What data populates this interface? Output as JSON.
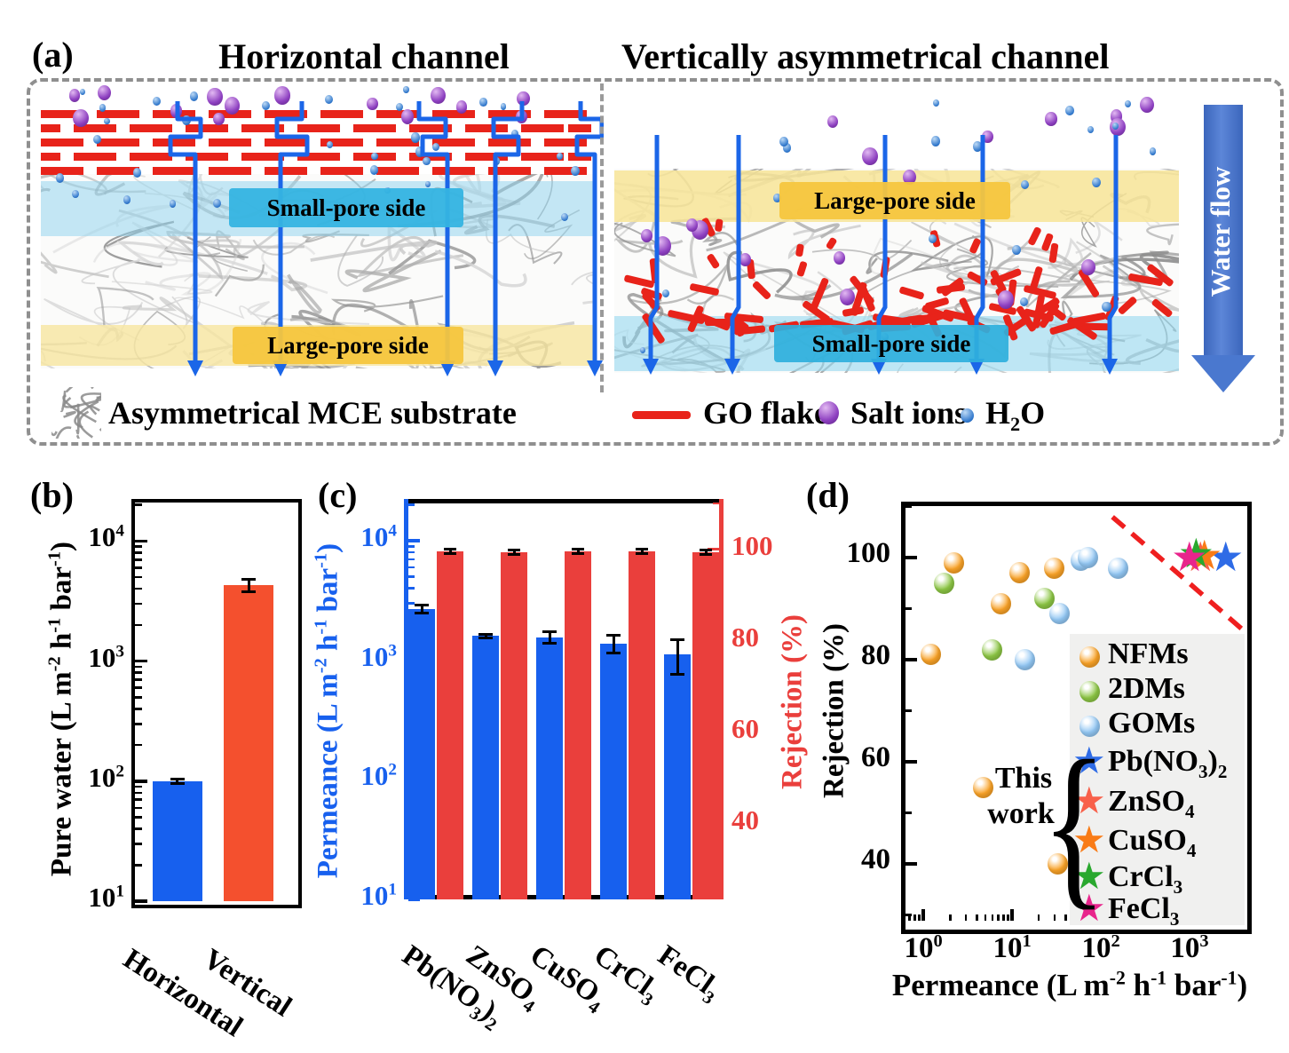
{
  "panel_a": {
    "label": "(a)",
    "left_title": "Horizontal channel",
    "right_title": "Vertically asymmetrical channel",
    "left": {
      "top_label": "Small-pore side",
      "bottom_label": "Large-pore side"
    },
    "right": {
      "top_label": "Large-pore side",
      "bottom_label": "Small-pore side"
    },
    "water_flow_label": "Water flow",
    "legend": {
      "substrate": "Asymmetrical MCE substrate",
      "go_flake": "GO flake",
      "salt_ions": "Salt ions",
      "water": "H_2_O"
    },
    "colors": {
      "go_flake": "#e8231a",
      "water_path": "#1b66e8",
      "salt_ion": "#8d3fc0",
      "water_dot": "#2f77cc",
      "small_pore_box": "#35b4e2",
      "large_pore_box": "#f6c63e",
      "water_flow_arrow": "#4a78cf"
    }
  },
  "chart_data": [
    {
      "id": "panel_b",
      "type": "bar",
      "panel_label": "(b)",
      "ylabel": "Pure water (L m^-2^ h^-1^ bar^-1^)",
      "yscale": "log",
      "ylim": [
        10,
        22400
      ],
      "yticks": [
        {
          "v": 10,
          "label": "10^1^"
        },
        {
          "v": 100,
          "label": "10^2^"
        },
        {
          "v": 1000,
          "label": "10^3^"
        },
        {
          "v": 10000,
          "label": "10^4^"
        }
      ],
      "categories": [
        "Horizontal",
        "Vertical"
      ],
      "values": [
        100,
        4300
      ],
      "errors": [
        4,
        500
      ],
      "bar_colors": [
        "#1760ee",
        "#f4502e"
      ]
    },
    {
      "id": "panel_c",
      "type": "bar-dual",
      "panel_label": "(c)",
      "ylabel_left": "Permeance (L m^-2^ h^-1^ bar^-1^)",
      "ylabel_right": "Rejection (%)",
      "yscale_left": "log",
      "ylim_left": [
        10,
        22400
      ],
      "ylim_right": [
        23.4,
        111
      ],
      "yticks_left": [
        {
          "v": 10,
          "label": "10^1^"
        },
        {
          "v": 100,
          "label": "10^2^"
        },
        {
          "v": 1000,
          "label": "10^3^"
        },
        {
          "v": 10000,
          "label": "10^4^"
        }
      ],
      "yticks_right": [
        40,
        60,
        80,
        100
      ],
      "categories": [
        "Pb(NO_3_)_2_",
        "ZnSO_4_",
        "CuSO_4_",
        "CrCl_3_",
        "FeCl_3_"
      ],
      "series": [
        {
          "name": "Permeance",
          "color": "#1760ee",
          "values": [
            2690,
            1600,
            1560,
            1380,
            1120
          ],
          "errors": [
            200,
            60,
            170,
            230,
            360
          ]
        },
        {
          "name": "Rejection",
          "color": "#ea3f3c",
          "values": [
            99.5,
            99.4,
            99.5,
            99.5,
            99.4
          ],
          "errors": [
            0.5,
            0.5,
            0.5,
            0.5,
            0.5
          ]
        }
      ],
      "axis_colors": {
        "left": "#1760ee",
        "right": "#ea3f3c"
      }
    },
    {
      "id": "panel_d",
      "type": "scatter",
      "panel_label": "(d)",
      "xlabel": "Permeance (L m^-2^ h^-1^ bar^-1^)",
      "ylabel": "Rejection (%)",
      "xscale": "log",
      "xlim": [
        0.56,
        3980
      ],
      "ylim": [
        28,
        111
      ],
      "xticks": [
        {
          "v": 1,
          "label": "10^0^"
        },
        {
          "v": 10,
          "label": "10^1^"
        },
        {
          "v": 100,
          "label": "10^2^"
        },
        {
          "v": 1000,
          "label": "10^3^"
        }
      ],
      "yticks": [
        40,
        60,
        80,
        100
      ],
      "series": [
        {
          "name": "NFMs",
          "marker": "circle",
          "color": "#f9a227",
          "points": [
            [
              1.2,
              81
            ],
            [
              2.2,
              99
            ],
            [
              4.7,
              55
            ],
            [
              7.5,
              91
            ],
            [
              12,
              97
            ],
            [
              30,
              98
            ],
            [
              33,
              40
            ]
          ]
        },
        {
          "name": "2DMs",
          "marker": "circle",
          "color": "#8cc644",
          "points": [
            [
              1.7,
              95
            ],
            [
              6,
              82
            ],
            [
              23,
              92
            ]
          ]
        },
        {
          "name": "GOMs",
          "marker": "circle",
          "color": "#92c7f4",
          "points": [
            [
              14,
              80
            ],
            [
              34,
              89
            ],
            [
              60,
              99.5
            ],
            [
              72,
              100
            ],
            [
              155,
              98
            ]
          ]
        },
        {
          "name": "Pb(NO_3_)_2_",
          "marker": "star",
          "color": "#2e6be6",
          "points": [
            [
              2700,
              99.6
            ]
          ]
        },
        {
          "name": "ZnSO_4_",
          "marker": "star",
          "color": "#f8604a",
          "points": [
            [
              1400,
              99.6
            ]
          ]
        },
        {
          "name": "CuSO_4_",
          "marker": "star",
          "color": "#f97b16",
          "points": [
            [
              1550,
              99.8
            ]
          ]
        },
        {
          "name": "CrCl_3_",
          "marker": "star",
          "color": "#29a82e",
          "points": [
            [
              1250,
              100.2
            ]
          ]
        },
        {
          "name": "FeCl_3_",
          "marker": "star",
          "color": "#e8258c",
          "points": [
            [
              1050,
              99.6
            ]
          ]
        }
      ],
      "annotations": {
        "this_work_line1": "This",
        "this_work_line2": "work"
      },
      "upper_bound_line": {
        "style": "dashed",
        "color": "#ef1f1f",
        "from": [
          135,
          108
        ],
        "to": [
          3900,
          86
        ]
      }
    }
  ]
}
